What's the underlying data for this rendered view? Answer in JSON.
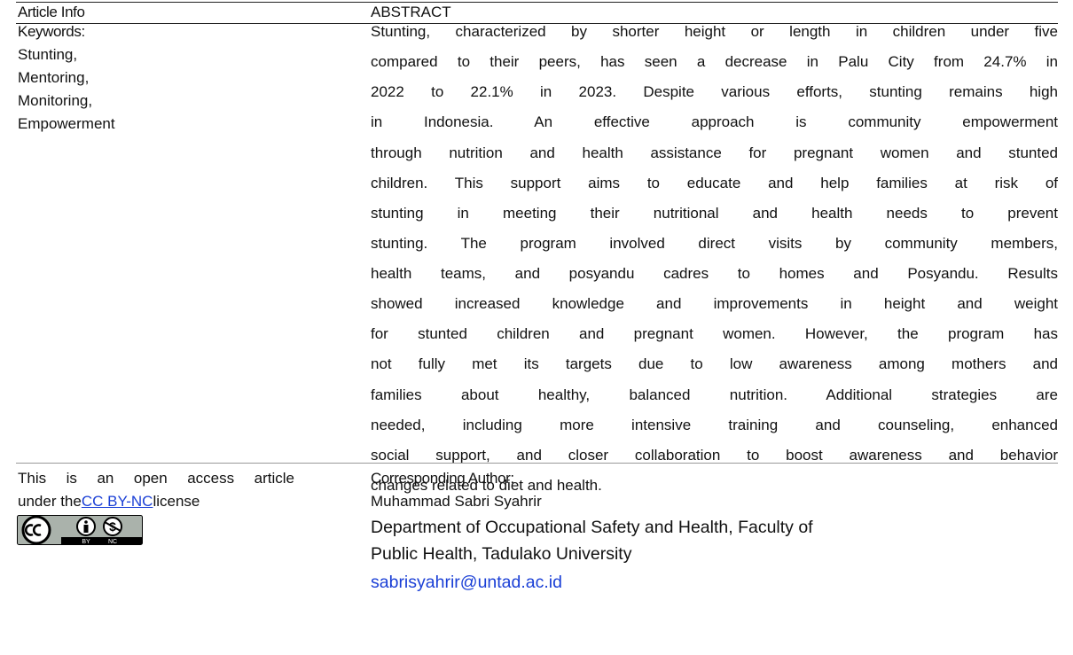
{
  "article_info": {
    "header_left": "Article Info",
    "header_right": "ABSTRACT",
    "keywords_label": "Keywords:",
    "keywords": [
      "Stunting,",
      "Mentoring,",
      "Monitoring,",
      "Empowerment"
    ],
    "abstract_lines": [
      "Stunting, characterized by shorter height or length in children under five",
      "compared to their peers, has seen a decrease in Palu City from 24.7% in",
      "2022 to 22.1% in 2023. Despite various efforts, stunting remains high",
      "in Indonesia. An effective approach is community empowerment",
      "through nutrition and health assistance for pregnant women and stunted",
      "children. This support aims to educate and help families at risk of",
      "stunting in meeting their nutritional and health needs to prevent",
      "stunting. The program involved direct visits by community members,",
      "health teams, and posyandu cadres to homes and Posyandu. Results",
      "showed increased knowledge and improvements in height and weight",
      "for stunted children and pregnant women. However, the program has",
      "not fully met its targets due to low awareness among mothers and",
      "families about healthy, balanced nutrition. Additional strategies are",
      "needed, including more intensive training and counseling, enhanced",
      "social support, and closer collaboration to boost awareness and behavior",
      "changes related to diet and health."
    ],
    "license": {
      "line1": "This is an open access article",
      "prefix": "under the",
      "link": "CC BY-NC",
      "suffix": "license",
      "badge_labels": [
        "BY",
        "NC"
      ]
    },
    "corresponding": {
      "label": "Corresponding Author:",
      "name": "Muhammad Sabri Syahrir",
      "affiliation_lines": [
        "Department of Occupational Safety and Health, Faculty of",
        "Public Health, Tadulako University"
      ],
      "email": "sabrisyahrir@untad.ac.id"
    }
  }
}
